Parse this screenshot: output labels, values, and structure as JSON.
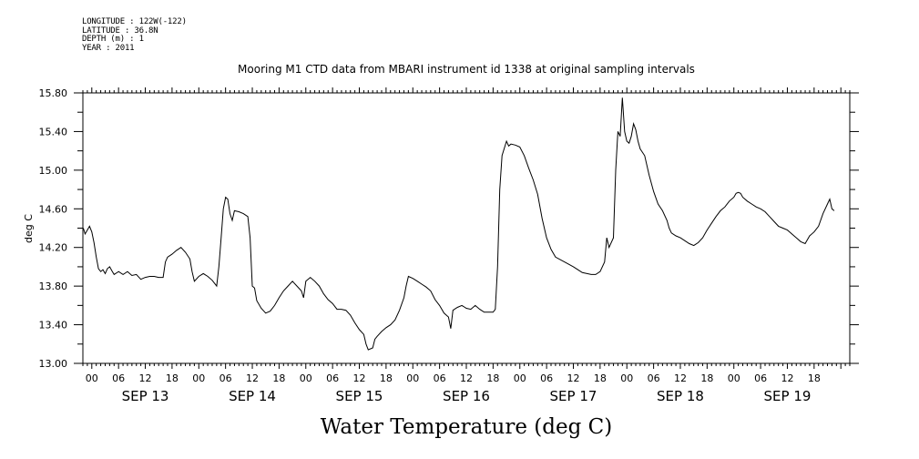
{
  "header": {
    "longitude": "LONGITUDE : 122W(-122)",
    "latitude": "LATITUDE : 36.8N",
    "depth": "DEPTH (m) : 1",
    "year": "YEAR : 2011"
  },
  "colors": {
    "line": "#000000",
    "background": "#ffffff"
  },
  "chart_data": {
    "type": "line",
    "title": "Mooring M1 CTD data from MBARI instrument id 1338 at original sampling intervals",
    "bottom_title": "Water Temperature (deg C)",
    "ylabel": "deg C",
    "xlabel": "",
    "ylim": [
      13.0,
      15.8
    ],
    "y_ticks": [
      "13.00",
      "13.40",
      "13.80",
      "14.20",
      "14.60",
      "15.00",
      "15.40",
      "15.80"
    ],
    "y_tick_values": [
      13.0,
      13.4,
      13.8,
      14.2,
      14.6,
      15.0,
      15.4,
      15.8
    ],
    "xlim": [
      "2011-09-12 22:00",
      "2011-09-20 02:00"
    ],
    "x_unit": "hours since 2011-09-13 00:00",
    "hour_ticks": [
      {
        "h": 0,
        "label": "00"
      },
      {
        "h": 6,
        "label": "06"
      },
      {
        "h": 12,
        "label": "12"
      },
      {
        "h": 18,
        "label": "18"
      },
      {
        "h": 24,
        "label": "00"
      },
      {
        "h": 30,
        "label": "06"
      },
      {
        "h": 36,
        "label": "12"
      },
      {
        "h": 42,
        "label": "18"
      },
      {
        "h": 48,
        "label": "00"
      },
      {
        "h": 54,
        "label": "06"
      },
      {
        "h": 60,
        "label": "12"
      },
      {
        "h": 66,
        "label": "18"
      },
      {
        "h": 72,
        "label": "00"
      },
      {
        "h": 78,
        "label": "06"
      },
      {
        "h": 84,
        "label": "12"
      },
      {
        "h": 90,
        "label": "18"
      },
      {
        "h": 96,
        "label": "00"
      },
      {
        "h": 102,
        "label": "06"
      },
      {
        "h": 108,
        "label": "12"
      },
      {
        "h": 114,
        "label": "18"
      },
      {
        "h": 120,
        "label": "00"
      },
      {
        "h": 126,
        "label": "06"
      },
      {
        "h": 132,
        "label": "12"
      },
      {
        "h": 138,
        "label": "18"
      },
      {
        "h": 144,
        "label": "00"
      },
      {
        "h": 150,
        "label": "06"
      },
      {
        "h": 156,
        "label": "12"
      },
      {
        "h": 162,
        "label": "18"
      }
    ],
    "day_labels": [
      {
        "h": 12,
        "label": "SEP 13"
      },
      {
        "h": 36,
        "label": "SEP 14"
      },
      {
        "h": 60,
        "label": "SEP 15"
      },
      {
        "h": 84,
        "label": "SEP 16"
      },
      {
        "h": 108,
        "label": "SEP 17"
      },
      {
        "h": 132,
        "label": "SEP 18"
      },
      {
        "h": 156,
        "label": "SEP 19"
      }
    ],
    "series": [
      {
        "points": [
          [
            -1.9,
            14.4
          ],
          [
            -1.5,
            14.34
          ],
          [
            -1.0,
            14.38
          ],
          [
            -0.5,
            14.42
          ],
          [
            0.0,
            14.36
          ],
          [
            0.5,
            14.25
          ],
          [
            1.0,
            14.1
          ],
          [
            1.5,
            13.98
          ],
          [
            2.0,
            13.95
          ],
          [
            2.5,
            13.97
          ],
          [
            3.0,
            13.93
          ],
          [
            3.5,
            13.98
          ],
          [
            4.0,
            14.0
          ],
          [
            4.5,
            13.96
          ],
          [
            5.0,
            13.92
          ],
          [
            6.0,
            13.95
          ],
          [
            7.0,
            13.92
          ],
          [
            8.0,
            13.95
          ],
          [
            9.0,
            13.91
          ],
          [
            10.0,
            13.92
          ],
          [
            11.0,
            13.87
          ],
          [
            12.0,
            13.89
          ],
          [
            13.0,
            13.9
          ],
          [
            14.0,
            13.9
          ],
          [
            15.0,
            13.89
          ],
          [
            16.0,
            13.89
          ],
          [
            16.5,
            14.05
          ],
          [
            17.0,
            14.1
          ],
          [
            18.0,
            14.13
          ],
          [
            19.0,
            14.17
          ],
          [
            20.0,
            14.2
          ],
          [
            21.0,
            14.15
          ],
          [
            22.0,
            14.08
          ],
          [
            22.5,
            13.95
          ],
          [
            23.0,
            13.85
          ],
          [
            24.0,
            13.9
          ],
          [
            25.0,
            13.93
          ],
          [
            26.0,
            13.9
          ],
          [
            27.0,
            13.86
          ],
          [
            28.0,
            13.8
          ],
          [
            28.5,
            14.0
          ],
          [
            29.0,
            14.3
          ],
          [
            29.5,
            14.6
          ],
          [
            30.0,
            14.72
          ],
          [
            30.5,
            14.7
          ],
          [
            31.0,
            14.55
          ],
          [
            31.5,
            14.48
          ],
          [
            32.0,
            14.58
          ],
          [
            33.0,
            14.57
          ],
          [
            34.0,
            14.55
          ],
          [
            35.0,
            14.52
          ],
          [
            35.5,
            14.3
          ],
          [
            36.0,
            13.8
          ],
          [
            36.5,
            13.78
          ],
          [
            37.0,
            13.65
          ],
          [
            38.0,
            13.57
          ],
          [
            39.0,
            13.52
          ],
          [
            40.0,
            13.54
          ],
          [
            41.0,
            13.6
          ],
          [
            42.0,
            13.68
          ],
          [
            43.0,
            13.75
          ],
          [
            44.0,
            13.8
          ],
          [
            45.0,
            13.85
          ],
          [
            46.0,
            13.8
          ],
          [
            47.0,
            13.75
          ],
          [
            47.5,
            13.68
          ],
          [
            48.0,
            13.85
          ],
          [
            49.0,
            13.89
          ],
          [
            50.0,
            13.85
          ],
          [
            51.0,
            13.8
          ],
          [
            52.0,
            13.72
          ],
          [
            53.0,
            13.66
          ],
          [
            54.0,
            13.62
          ],
          [
            55.0,
            13.56
          ],
          [
            56.0,
            13.56
          ],
          [
            57.0,
            13.55
          ],
          [
            58.0,
            13.5
          ],
          [
            59.0,
            13.42
          ],
          [
            60.0,
            13.35
          ],
          [
            61.0,
            13.3
          ],
          [
            61.5,
            13.2
          ],
          [
            62.0,
            13.14
          ],
          [
            63.0,
            13.16
          ],
          [
            63.5,
            13.25
          ],
          [
            64.0,
            13.28
          ],
          [
            65.0,
            13.33
          ],
          [
            66.0,
            13.37
          ],
          [
            67.0,
            13.4
          ],
          [
            68.0,
            13.45
          ],
          [
            69.0,
            13.55
          ],
          [
            70.0,
            13.68
          ],
          [
            70.5,
            13.8
          ],
          [
            71.0,
            13.9
          ],
          [
            72.0,
            13.88
          ],
          [
            73.0,
            13.85
          ],
          [
            74.0,
            13.82
          ],
          [
            75.0,
            13.79
          ],
          [
            76.0,
            13.75
          ],
          [
            77.0,
            13.66
          ],
          [
            78.0,
            13.6
          ],
          [
            79.0,
            13.52
          ],
          [
            80.0,
            13.48
          ],
          [
            80.5,
            13.36
          ],
          [
            81.0,
            13.55
          ],
          [
            82.0,
            13.58
          ],
          [
            83.0,
            13.6
          ],
          [
            84.0,
            13.57
          ],
          [
            85.0,
            13.56
          ],
          [
            86.0,
            13.6
          ],
          [
            87.0,
            13.56
          ],
          [
            88.0,
            13.53
          ],
          [
            89.0,
            13.53
          ],
          [
            90.0,
            13.53
          ],
          [
            90.5,
            13.56
          ],
          [
            91.0,
            14.0
          ],
          [
            91.5,
            14.8
          ],
          [
            92.0,
            15.15
          ],
          [
            93.0,
            15.3
          ],
          [
            93.5,
            15.25
          ],
          [
            94.0,
            15.27
          ],
          [
            95.0,
            15.26
          ],
          [
            96.0,
            15.24
          ],
          [
            97.0,
            15.15
          ],
          [
            98.0,
            15.02
          ],
          [
            99.0,
            14.9
          ],
          [
            100.0,
            14.75
          ],
          [
            101.0,
            14.5
          ],
          [
            102.0,
            14.3
          ],
          [
            103.0,
            14.18
          ],
          [
            104.0,
            14.1
          ],
          [
            106.0,
            14.05
          ],
          [
            108.0,
            14.0
          ],
          [
            110.0,
            13.94
          ],
          [
            112.0,
            13.92
          ],
          [
            113.0,
            13.92
          ],
          [
            114.0,
            13.95
          ],
          [
            115.0,
            14.05
          ],
          [
            115.5,
            14.3
          ],
          [
            116.0,
            14.2
          ],
          [
            117.0,
            14.3
          ],
          [
            117.5,
            15.0
          ],
          [
            118.0,
            15.4
          ],
          [
            118.5,
            15.35
          ],
          [
            119.0,
            15.75
          ],
          [
            119.5,
            15.4
          ],
          [
            120.0,
            15.3
          ],
          [
            120.5,
            15.28
          ],
          [
            121.0,
            15.35
          ],
          [
            121.5,
            15.48
          ],
          [
            122.0,
            15.42
          ],
          [
            122.5,
            15.3
          ],
          [
            123.0,
            15.22
          ],
          [
            124.0,
            15.15
          ],
          [
            125.0,
            14.95
          ],
          [
            126.0,
            14.78
          ],
          [
            127.0,
            14.65
          ],
          [
            128.0,
            14.58
          ],
          [
            129.0,
            14.48
          ],
          [
            129.5,
            14.4
          ],
          [
            130.0,
            14.35
          ],
          [
            131.0,
            14.32
          ],
          [
            132.0,
            14.3
          ],
          [
            133.0,
            14.27
          ],
          [
            134.0,
            14.24
          ],
          [
            135.0,
            14.22
          ],
          [
            136.0,
            14.25
          ],
          [
            137.0,
            14.3
          ],
          [
            138.0,
            14.38
          ],
          [
            139.0,
            14.45
          ],
          [
            140.0,
            14.52
          ],
          [
            141.0,
            14.58
          ],
          [
            142.0,
            14.62
          ],
          [
            143.0,
            14.68
          ],
          [
            144.0,
            14.72
          ],
          [
            144.5,
            14.76
          ],
          [
            145.0,
            14.77
          ],
          [
            145.5,
            14.76
          ],
          [
            146.0,
            14.72
          ],
          [
            147.0,
            14.68
          ],
          [
            148.0,
            14.65
          ],
          [
            149.0,
            14.62
          ],
          [
            150.0,
            14.6
          ],
          [
            151.0,
            14.57
          ],
          [
            152.0,
            14.52
          ],
          [
            153.0,
            14.47
          ],
          [
            154.0,
            14.42
          ],
          [
            155.0,
            14.4
          ],
          [
            156.0,
            14.38
          ],
          [
            157.0,
            14.34
          ],
          [
            158.0,
            14.3
          ],
          [
            159.0,
            14.26
          ],
          [
            160.0,
            14.24
          ],
          [
            161.0,
            14.32
          ],
          [
            162.0,
            14.36
          ],
          [
            163.0,
            14.42
          ],
          [
            164.0,
            14.55
          ],
          [
            165.0,
            14.65
          ],
          [
            165.5,
            14.7
          ],
          [
            166.0,
            14.6
          ],
          [
            166.5,
            14.58
          ]
        ]
      }
    ]
  }
}
